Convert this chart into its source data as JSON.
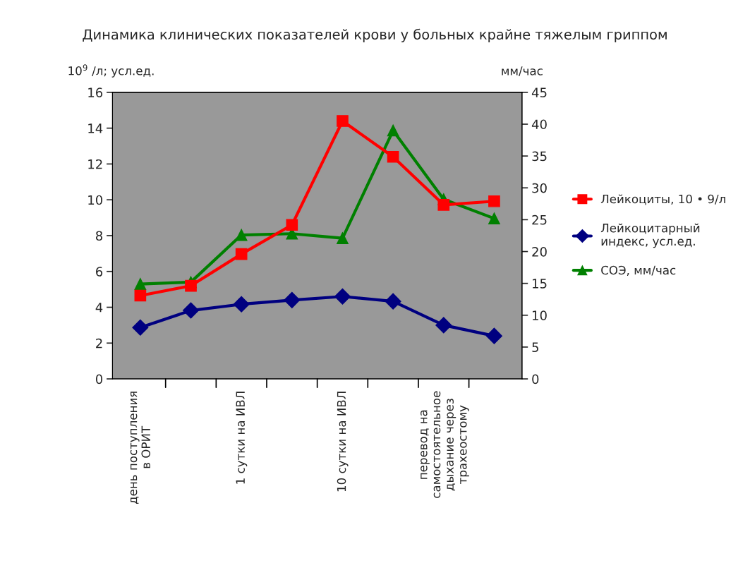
{
  "chart_data": {
    "type": "line",
    "title": "Динамика клинических показателей крови у больных крайне тяжелым гриппом",
    "ylabel": "10$^{9}$ /л; усл.ед.",
    "y2label": "мм/час",
    "categories": [
      "день поступления\nв ОРИТ",
      null,
      "1 сутки на ИВЛ",
      null,
      "10 сутки на ИВЛ",
      null,
      "перевод на\nсамостоятельное\nдыхание через\nтрахеостому",
      null
    ],
    "series": [
      {
        "name": "Лейкоциты, 10 • 9/л",
        "color": "#ff0000",
        "marker": "square",
        "values": [
          4.65,
          5.2,
          6.97,
          8.6,
          14.4,
          12.4,
          9.72,
          9.92
        ]
      },
      {
        "name": "Лейкоцитарный\nиндекс, усл.ед.",
        "color": "#000080",
        "marker": "diamond",
        "values": [
          2.87,
          3.82,
          4.17,
          4.4,
          4.6,
          4.33,
          3.0,
          2.4
        ]
      },
      {
        "name": "СОЭ, мм/час",
        "color": "#008000",
        "marker": "triangle",
        "axis": "y2",
        "values": [
          14.9,
          15.2,
          22.6,
          22.8,
          22.1,
          39.0,
          28.2,
          25.2
        ]
      }
    ],
    "ylim": [
      0,
      16
    ],
    "yticks": [
      0,
      2,
      4,
      6,
      8,
      10,
      12,
      14,
      16
    ],
    "y2lim": [
      0,
      45
    ],
    "y2ticks": [
      0,
      5,
      10,
      15,
      20,
      25,
      30,
      35,
      40,
      45
    ],
    "grid": false,
    "legend": "right",
    "line_style": "solid"
  }
}
